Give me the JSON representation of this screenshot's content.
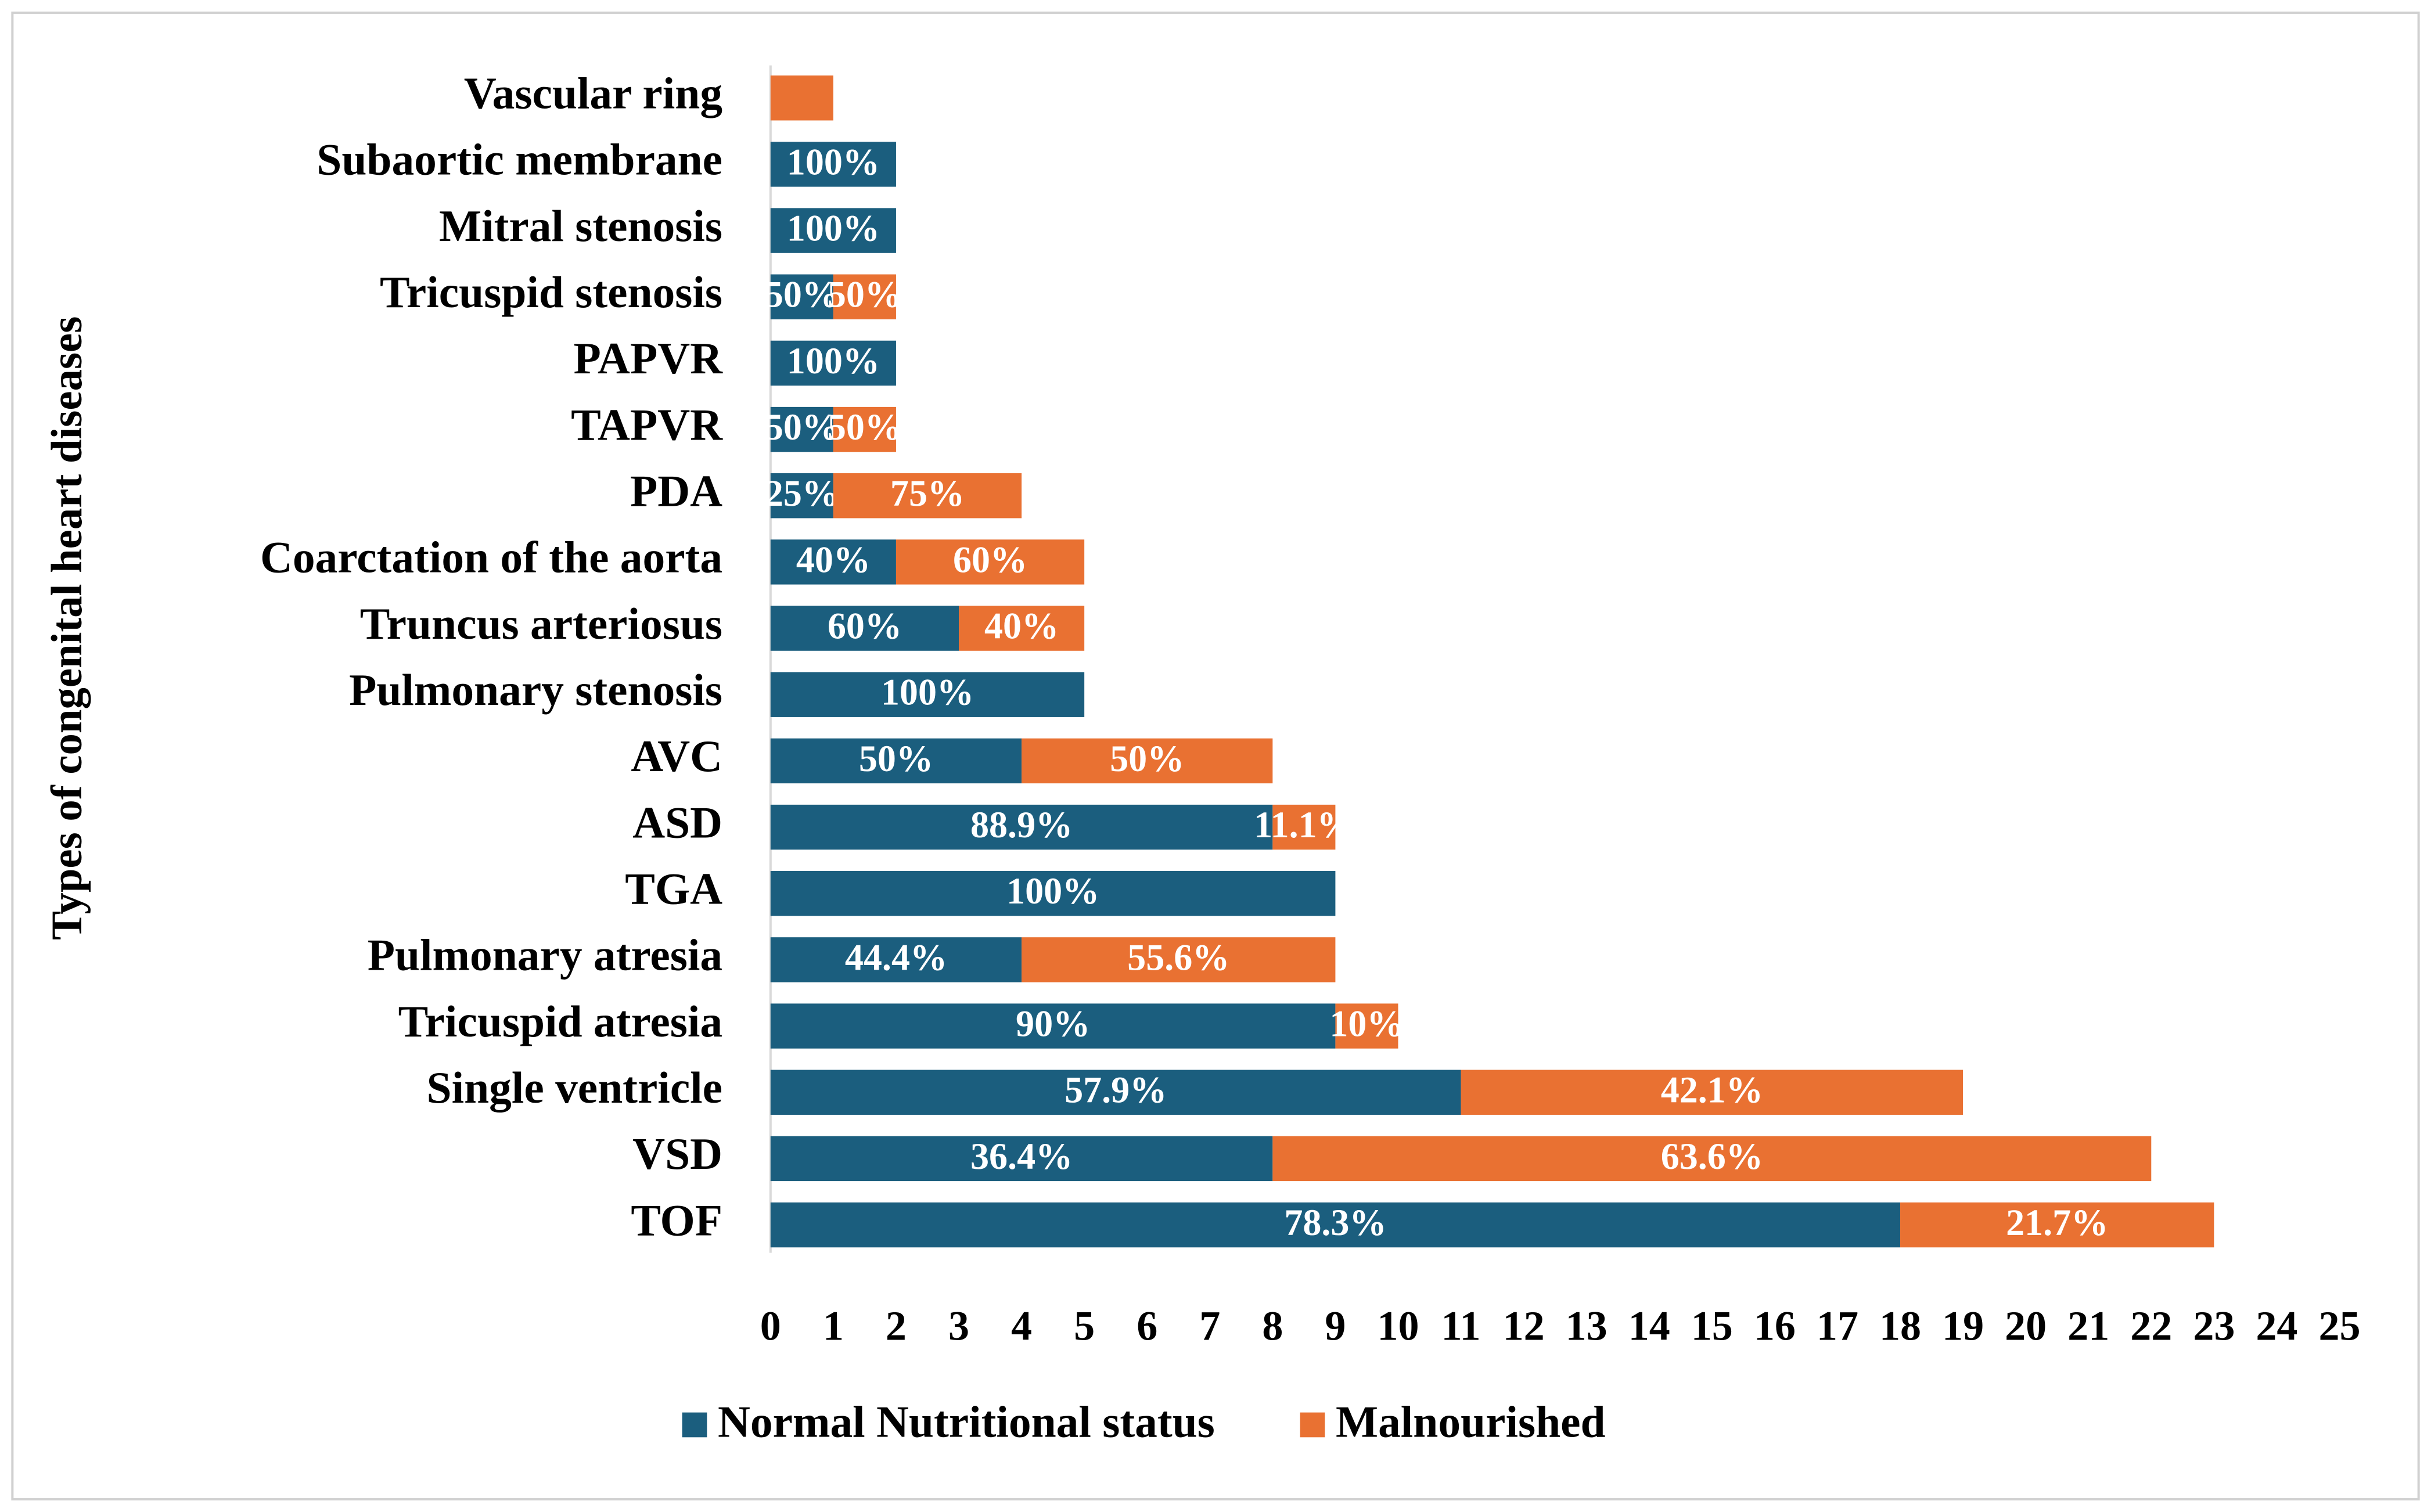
{
  "chart_data": {
    "type": "stacked-barh",
    "y_label": "Types of congenital heart diseases",
    "categories": [
      "Vascular ring",
      "Subaortic membrane",
      "Mitral stenosis",
      "Tricuspid stenosis",
      "PAPVR",
      "TAPVR",
      "PDA",
      "Coarctation of the aorta",
      "Truncus arteriosus",
      "Pulmonary stenosis",
      "AVC",
      "ASD",
      "TGA",
      "Pulmonary atresia",
      "Tricuspid atresia",
      "Single ventricle",
      "VSD",
      "TOF"
    ],
    "series": [
      {
        "name": "Normal Nutritional status",
        "color": "#1b5e7e",
        "values": [
          0,
          2,
          2,
          1,
          2,
          1,
          1,
          2,
          3,
          5,
          4,
          8,
          9,
          4,
          9,
          11,
          8,
          18
        ],
        "data_labels": [
          null,
          "100%",
          "100%",
          "50%",
          "100%",
          "50%",
          "25%",
          "40%",
          "60%",
          "100%",
          "50%",
          "88.9%",
          "100%",
          "44.4%",
          "90%",
          "57.9%",
          "36.4%",
          "78.3%"
        ]
      },
      {
        "name": "Malnourished",
        "color": "#e97132",
        "values": [
          1,
          0,
          0,
          1,
          0,
          1,
          3,
          3,
          2,
          0,
          4,
          1,
          0,
          5,
          1,
          8,
          14,
          5
        ],
        "data_labels": [
          null,
          null,
          null,
          "50%",
          null,
          "50%",
          "75%",
          "60%",
          "40%",
          null,
          "50%",
          "11.1%",
          null,
          "55.6%",
          "10%",
          "42.1%",
          "63.6%",
          "21.7%"
        ]
      }
    ],
    "xlim": [
      0,
      25
    ],
    "xticks": [
      0,
      1,
      2,
      3,
      4,
      5,
      6,
      7,
      8,
      9,
      10,
      11,
      12,
      13,
      14,
      15,
      16,
      17,
      18,
      19,
      20,
      21,
      22,
      23,
      24,
      25
    ],
    "legend": "bottom"
  }
}
